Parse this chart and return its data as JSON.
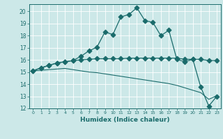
{
  "bg_color": "#cce8e8",
  "grid_color": "#c8dada",
  "line_color": "#1a6b6b",
  "xlabel": "Humidex (Indice chaleur)",
  "xlim": [
    -0.5,
    23.5
  ],
  "ylim": [
    12,
    20.6
  ],
  "yticks": [
    12,
    13,
    14,
    15,
    16,
    17,
    18,
    19,
    20
  ],
  "xticks": [
    0,
    1,
    2,
    3,
    4,
    5,
    6,
    7,
    8,
    9,
    10,
    11,
    12,
    13,
    14,
    15,
    16,
    17,
    18,
    19,
    20,
    21,
    22,
    23
  ],
  "line1_x": [
    0,
    1,
    2,
    3,
    4,
    5,
    6,
    7,
    8,
    9,
    10,
    11,
    12,
    13,
    14,
    15,
    16,
    17,
    18,
    19,
    20,
    21,
    22,
    23
  ],
  "line1_y": [
    15.1,
    15.35,
    15.55,
    15.75,
    15.85,
    15.95,
    16.3,
    16.75,
    17.05,
    18.3,
    18.1,
    19.55,
    19.75,
    20.3,
    19.25,
    19.1,
    18.0,
    18.45,
    16.05,
    15.85,
    16.05,
    13.75,
    12.2,
    13.0
  ],
  "line2_x": [
    0,
    1,
    2,
    3,
    4,
    5,
    6,
    7,
    8,
    9,
    10,
    11,
    12,
    13,
    14,
    15,
    16,
    17,
    18,
    19,
    20,
    21,
    22,
    23
  ],
  "line2_y": [
    15.1,
    15.35,
    15.55,
    15.75,
    15.85,
    15.95,
    16.0,
    16.05,
    16.1,
    16.1,
    16.1,
    16.1,
    16.15,
    16.15,
    16.15,
    16.15,
    16.15,
    16.15,
    16.15,
    16.05,
    16.05,
    16.05,
    15.95,
    15.95
  ],
  "line3_x": [
    0,
    1,
    2,
    3,
    4,
    5,
    6,
    7,
    8,
    9,
    10,
    11,
    12,
    13,
    14,
    15,
    16,
    17,
    18,
    19,
    20,
    21,
    22,
    23
  ],
  "line3_y": [
    15.1,
    15.15,
    15.2,
    15.25,
    15.3,
    15.2,
    15.1,
    15.0,
    14.95,
    14.85,
    14.75,
    14.65,
    14.55,
    14.45,
    14.35,
    14.25,
    14.15,
    14.05,
    13.9,
    13.7,
    13.5,
    13.3,
    12.75,
    13.05
  ]
}
